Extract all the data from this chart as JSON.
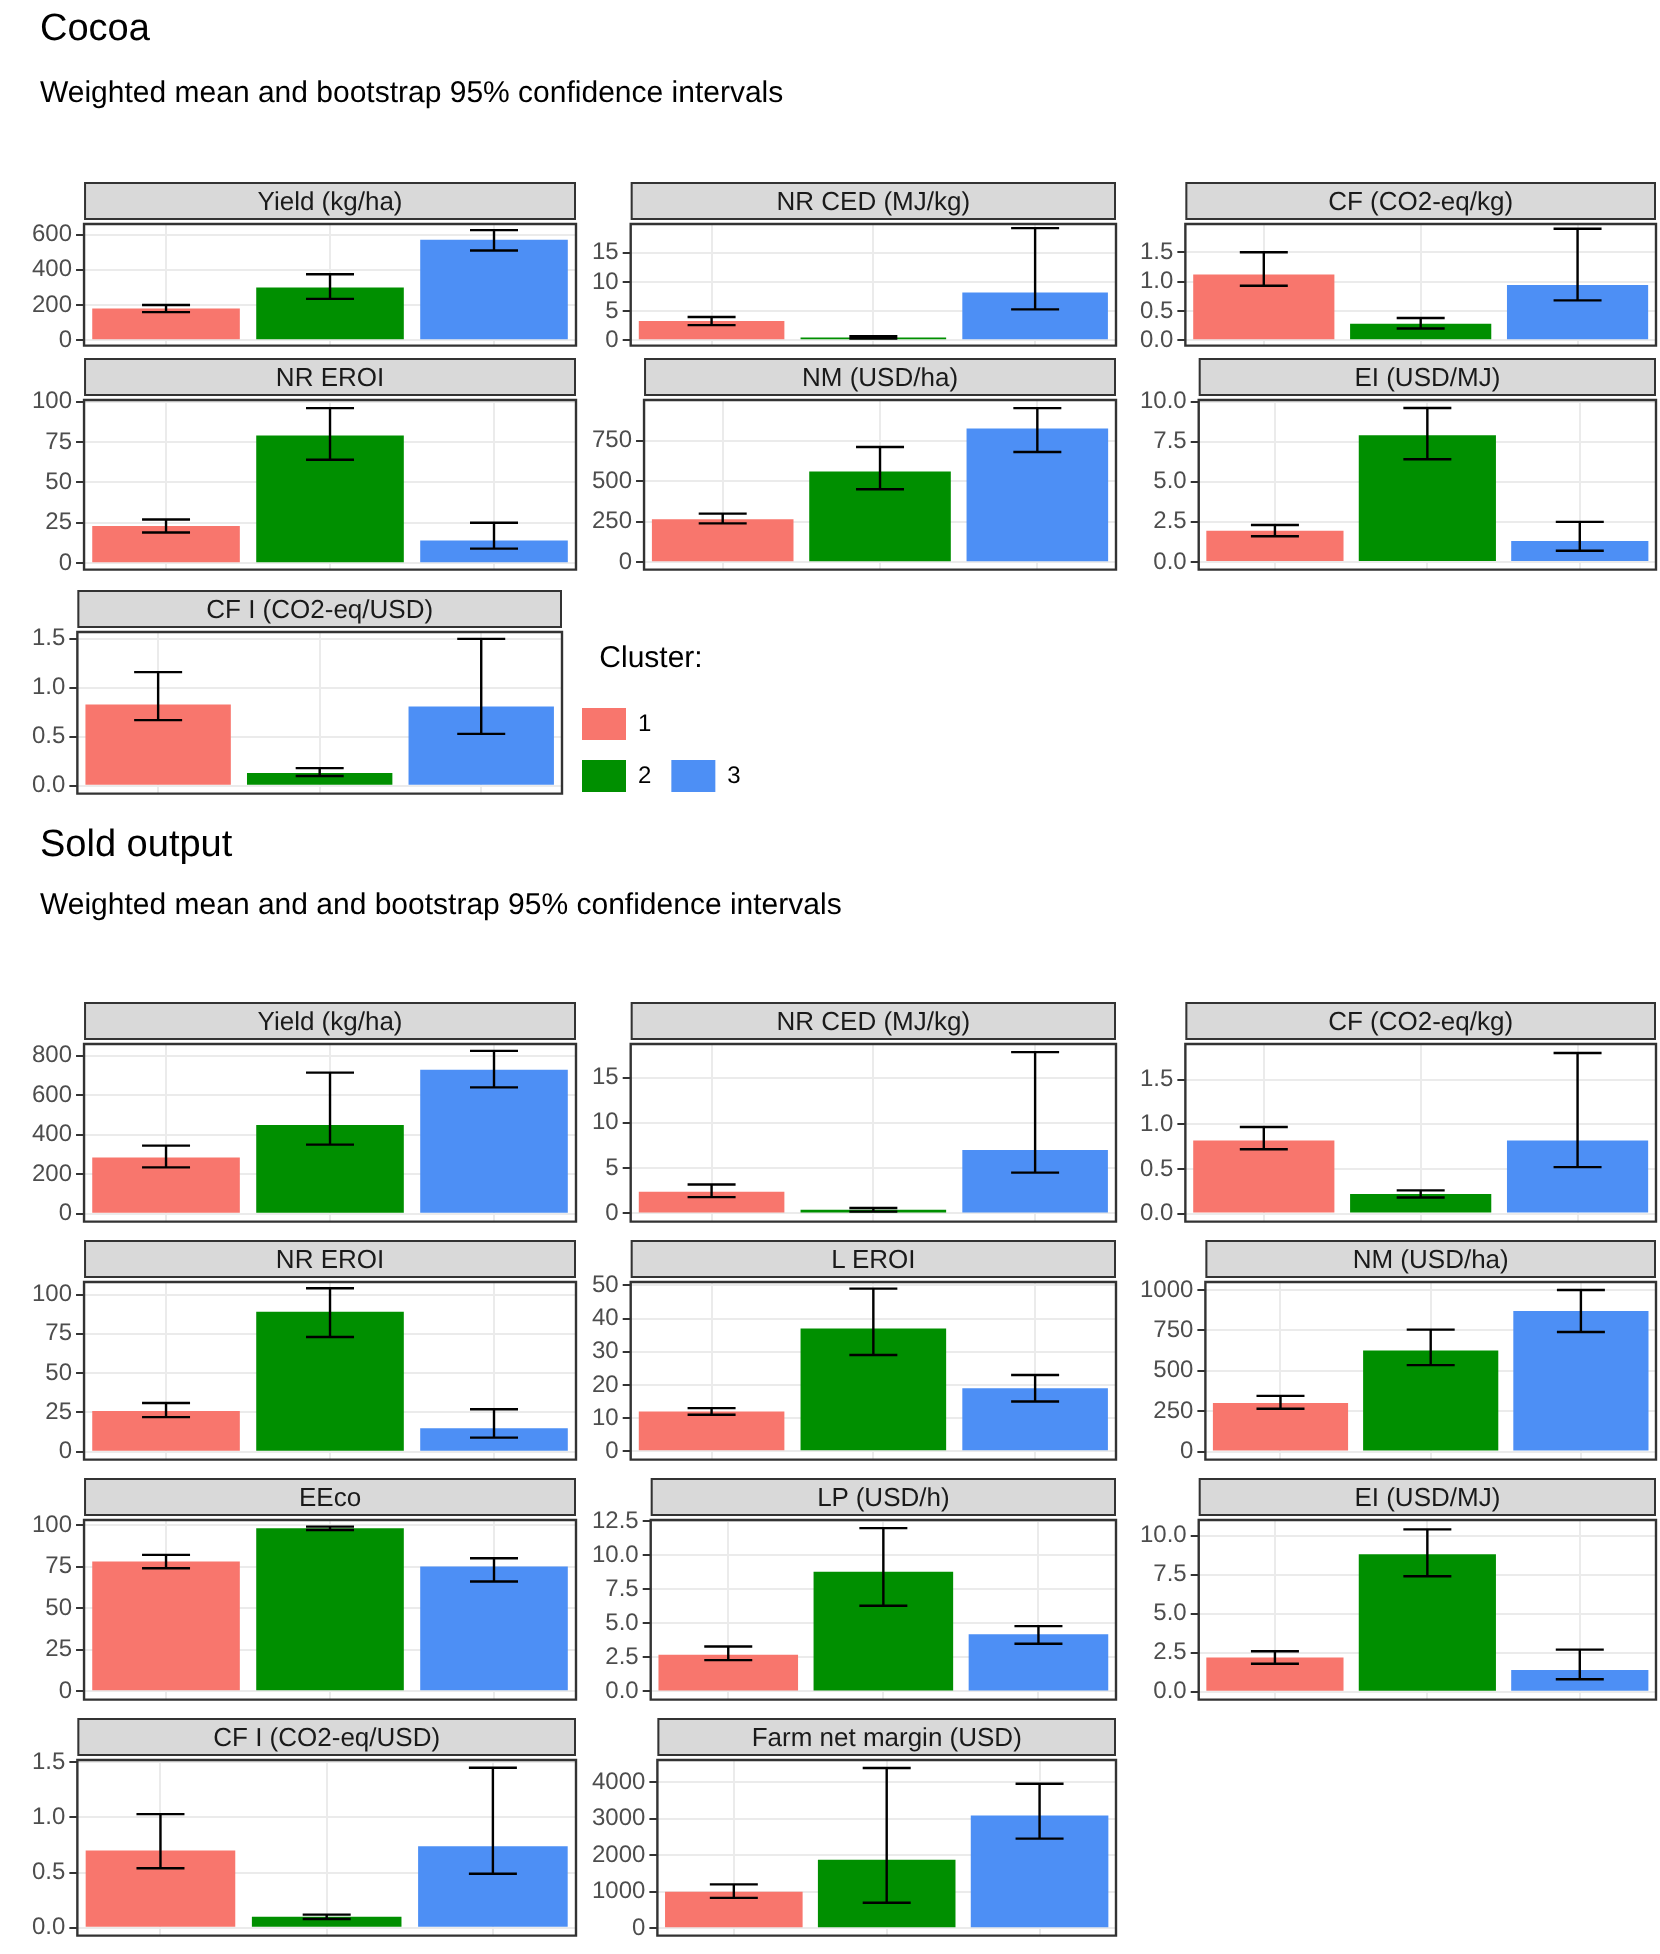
{
  "chart_data": [
    {
      "type": "bar",
      "title": "Yield (kg/ha)",
      "annotations": [
        "Cocoa",
        "Weighted mean and bootstrap 95% confidence intervals"
      ],
      "categories": [
        null,
        null,
        null
      ],
      "grid": true,
      "tick_labels": "y",
      "ylim": [
        -30,
        660
      ],
      "yticks": [
        0,
        200,
        400,
        600
      ],
      "series": [
        {
          "color": "#f8766d",
          "values": [
            180,
            null,
            null
          ],
          "errors": [
            [
              160,
              200
            ],
            null,
            null
          ]
        },
        {
          "color": "#008f00",
          "values": [
            null,
            300,
            null
          ],
          "errors": [
            null,
            [
              235,
              375
            ],
            null
          ]
        },
        {
          "color": "#4d8ff5",
          "values": [
            null,
            null,
            570
          ],
          "errors": [
            null,
            null,
            [
              510,
              625
            ]
          ]
        }
      ]
    },
    {
      "type": "bar",
      "title": "NR CED (MJ/kg)",
      "categories": [
        null,
        null,
        null
      ],
      "grid": true,
      "tick_labels": "y",
      "ylim": [
        -0.9,
        19.9
      ],
      "yticks": [
        0,
        5,
        10,
        15
      ],
      "series": [
        {
          "color": "#f8766d",
          "values": [
            3.3,
            null,
            null
          ],
          "errors": [
            [
              2.6,
              4.0
            ],
            null,
            null
          ]
        },
        {
          "color": "#008f00",
          "values": [
            null,
            0.5,
            null
          ],
          "errors": [
            null,
            [
              0.3,
              0.7
            ],
            null
          ]
        },
        {
          "color": "#4d8ff5",
          "values": [
            null,
            null,
            8.2
          ],
          "errors": [
            null,
            null,
            [
              5.3,
              19.2
            ]
          ]
        }
      ]
    },
    {
      "type": "bar",
      "title": "CF (CO2-eq/kg)",
      "categories": [
        null,
        null,
        null
      ],
      "grid": true,
      "tick_labels": "y",
      "ylim": [
        -0.09,
        1.98
      ],
      "yticks": [
        {
          "value": 0,
          "label": "0.0"
        },
        0.5,
        {
          "value": 1,
          "label": "1.0"
        },
        1.5
      ],
      "series": [
        {
          "color": "#f8766d",
          "values": [
            1.12,
            null,
            null
          ],
          "errors": [
            [
              0.93,
              1.5
            ],
            null,
            null
          ]
        },
        {
          "color": "#008f00",
          "values": [
            null,
            0.28,
            null
          ],
          "errors": [
            null,
            [
              0.2,
              0.38
            ],
            null
          ]
        },
        {
          "color": "#4d8ff5",
          "values": [
            null,
            null,
            0.94
          ],
          "errors": [
            null,
            null,
            [
              0.68,
              1.9
            ]
          ]
        }
      ]
    },
    {
      "type": "bar",
      "title": "NR EROI",
      "categories": [
        null,
        null,
        null
      ],
      "grid": true,
      "tick_labels": "y",
      "ylim": [
        -4,
        101
      ],
      "yticks": [
        0,
        25,
        50,
        75,
        100
      ],
      "series": [
        {
          "color": "#f8766d",
          "values": [
            23,
            null,
            null
          ],
          "errors": [
            [
              19,
              27
            ],
            null,
            null
          ]
        },
        {
          "color": "#008f00",
          "values": [
            null,
            79,
            null
          ],
          "errors": [
            null,
            [
              64,
              96
            ],
            null
          ]
        },
        {
          "color": "#4d8ff5",
          "values": [
            null,
            null,
            14
          ],
          "errors": [
            null,
            null,
            [
              9,
              25
            ]
          ]
        }
      ]
    },
    {
      "type": "bar",
      "title": "NM (USD/ha)",
      "categories": [
        null,
        null,
        null
      ],
      "grid": true,
      "tick_labels": "y",
      "ylim": [
        -45,
        1000
      ],
      "yticks": [
        0,
        250,
        500,
        750
      ],
      "series": [
        {
          "color": "#f8766d",
          "values": [
            265,
            null,
            null
          ],
          "errors": [
            [
              240,
              300
            ],
            null,
            null
          ]
        },
        {
          "color": "#008f00",
          "values": [
            null,
            560,
            null
          ],
          "errors": [
            null,
            [
              450,
              710
            ],
            null
          ]
        },
        {
          "color": "#4d8ff5",
          "values": [
            null,
            null,
            825
          ],
          "errors": [
            null,
            null,
            [
              680,
              950
            ]
          ]
        }
      ]
    },
    {
      "type": "bar",
      "title": "EI (USD/MJ)",
      "categories": [
        null,
        null,
        null
      ],
      "grid": true,
      "tick_labels": "y",
      "ylim": [
        -0.48,
        10.1
      ],
      "yticks": [
        {
          "value": 0,
          "label": "0.0"
        },
        2.5,
        {
          "value": 5,
          "label": "5.0"
        },
        7.5,
        {
          "value": 10,
          "label": "10.0"
        }
      ],
      "series": [
        {
          "color": "#f8766d",
          "values": [
            1.95,
            null,
            null
          ],
          "errors": [
            [
              1.6,
              2.3
            ],
            null,
            null
          ]
        },
        {
          "color": "#008f00",
          "values": [
            null,
            7.9,
            null
          ],
          "errors": [
            null,
            [
              6.4,
              9.6
            ],
            null
          ]
        },
        {
          "color": "#4d8ff5",
          "values": [
            null,
            null,
            1.3
          ],
          "errors": [
            null,
            null,
            [
              0.7,
              2.5
            ]
          ]
        }
      ]
    },
    {
      "type": "bar",
      "title": "CF I (CO2-eq/USD)",
      "legend_title": "Cluster:",
      "legend": "right",
      "categories": [
        null,
        null,
        null
      ],
      "grid": true,
      "tick_labels": "y",
      "ylim": [
        -0.08,
        1.57
      ],
      "yticks": [
        {
          "value": 0,
          "label": "0.0"
        },
        0.5,
        {
          "value": 1,
          "label": "1.0"
        },
        1.5
      ],
      "series": [
        {
          "name": "1",
          "color": "#f8766d",
          "values": [
            0.83,
            null,
            null
          ],
          "errors": [
            [
              0.67,
              1.16
            ],
            null,
            null
          ]
        },
        {
          "name": "2",
          "color": "#008f00",
          "values": [
            null,
            0.13,
            null
          ],
          "errors": [
            null,
            [
              0.1,
              0.18
            ],
            null
          ]
        },
        {
          "name": "3",
          "color": "#4d8ff5",
          "values": [
            null,
            null,
            0.81
          ],
          "errors": [
            null,
            null,
            [
              0.53,
              1.5
            ]
          ]
        }
      ]
    },
    {
      "type": "bar",
      "title": "Yield (kg/ha)",
      "annotations": [
        "Sold output",
        "Weighted mean and and bootstrap 95% confidence intervals"
      ],
      "categories": [
        null,
        null,
        null
      ],
      "grid": true,
      "tick_labels": "y",
      "ylim": [
        -40,
        860
      ],
      "yticks": [
        0,
        200,
        400,
        600,
        800
      ],
      "series": [
        {
          "color": "#f8766d",
          "values": [
            285,
            null,
            null
          ],
          "errors": [
            [
              235,
              345
            ],
            null,
            null
          ]
        },
        {
          "color": "#008f00",
          "values": [
            null,
            450,
            null
          ],
          "errors": [
            null,
            [
              350,
              715
            ],
            null
          ]
        },
        {
          "color": "#4d8ff5",
          "values": [
            null,
            null,
            730
          ],
          "errors": [
            null,
            null,
            [
              640,
              825
            ]
          ]
        }
      ]
    },
    {
      "type": "bar",
      "title": "NR CED (MJ/kg)",
      "categories": [
        null,
        null,
        null
      ],
      "grid": true,
      "tick_labels": "y",
      "ylim": [
        -0.9,
        18.7
      ],
      "yticks": [
        0,
        5,
        10,
        15
      ],
      "series": [
        {
          "color": "#f8766d",
          "values": [
            2.4,
            null,
            null
          ],
          "errors": [
            [
              1.8,
              3.2
            ],
            null,
            null
          ]
        },
        {
          "color": "#008f00",
          "values": [
            null,
            0.4,
            null
          ],
          "errors": [
            null,
            [
              0.2,
              0.6
            ],
            null
          ]
        },
        {
          "color": "#4d8ff5",
          "values": [
            null,
            null,
            7.0
          ],
          "errors": [
            null,
            null,
            [
              4.5,
              17.8
            ]
          ]
        }
      ]
    },
    {
      "type": "bar",
      "title": "CF (CO2-eq/kg)",
      "categories": [
        null,
        null,
        null
      ],
      "grid": true,
      "tick_labels": "y",
      "ylim": [
        -0.09,
        1.9
      ],
      "yticks": [
        {
          "value": 0,
          "label": "0.0"
        },
        0.5,
        {
          "value": 1,
          "label": "1.0"
        },
        1.5
      ],
      "series": [
        {
          "color": "#f8766d",
          "values": [
            0.82,
            null,
            null
          ],
          "errors": [
            [
              0.72,
              0.97
            ],
            null,
            null
          ]
        },
        {
          "color": "#008f00",
          "values": [
            null,
            0.22,
            null
          ],
          "errors": [
            null,
            [
              0.18,
              0.26
            ],
            null
          ]
        },
        {
          "color": "#4d8ff5",
          "values": [
            null,
            null,
            0.82
          ],
          "errors": [
            null,
            null,
            [
              0.52,
              1.8
            ]
          ]
        }
      ]
    },
    {
      "type": "bar",
      "title": "NR EROI",
      "categories": [
        null,
        null,
        null
      ],
      "grid": true,
      "tick_labels": "y",
      "ylim": [
        -5,
        108
      ],
      "yticks": [
        0,
        25,
        50,
        75,
        100
      ],
      "series": [
        {
          "color": "#f8766d",
          "values": [
            26,
            null,
            null
          ],
          "errors": [
            [
              22,
              31
            ],
            null,
            null
          ]
        },
        {
          "color": "#008f00",
          "values": [
            null,
            89,
            null
          ],
          "errors": [
            null,
            [
              73,
              104
            ],
            null
          ]
        },
        {
          "color": "#4d8ff5",
          "values": [
            null,
            null,
            15
          ],
          "errors": [
            null,
            null,
            [
              9,
              27
            ]
          ]
        }
      ]
    },
    {
      "type": "bar",
      "title": "L EROI",
      "categories": [
        null,
        null,
        null
      ],
      "grid": true,
      "tick_labels": "y",
      "ylim": [
        -2.5,
        51
      ],
      "yticks": [
        0,
        10,
        20,
        30,
        40,
        50
      ],
      "series": [
        {
          "color": "#f8766d",
          "values": [
            12,
            null,
            null
          ],
          "errors": [
            [
              11,
              13
            ],
            null,
            null
          ]
        },
        {
          "color": "#008f00",
          "values": [
            null,
            37,
            null
          ],
          "errors": [
            null,
            [
              29,
              49
            ],
            null
          ]
        },
        {
          "color": "#4d8ff5",
          "values": [
            null,
            null,
            19
          ],
          "errors": [
            null,
            null,
            [
              15,
              23
            ]
          ]
        }
      ]
    },
    {
      "type": "bar",
      "title": "NM (USD/ha)",
      "categories": [
        null,
        null,
        null
      ],
      "grid": true,
      "tick_labels": "y",
      "ylim": [
        -50,
        1050
      ],
      "yticks": [
        0,
        250,
        500,
        750,
        1000
      ],
      "series": [
        {
          "color": "#f8766d",
          "values": [
            300,
            null,
            null
          ],
          "errors": [
            [
              265,
              345
            ],
            null,
            null
          ]
        },
        {
          "color": "#008f00",
          "values": [
            null,
            625,
            null
          ],
          "errors": [
            null,
            [
              535,
              755
            ],
            null
          ]
        },
        {
          "color": "#4d8ff5",
          "values": [
            null,
            null,
            870
          ],
          "errors": [
            null,
            null,
            [
              740,
              1000
            ]
          ]
        }
      ]
    },
    {
      "type": "bar",
      "title": "EEco",
      "categories": [
        null,
        null,
        null
      ],
      "grid": true,
      "tick_labels": "y",
      "ylim": [
        -5,
        103
      ],
      "yticks": [
        0,
        25,
        50,
        75,
        100
      ],
      "series": [
        {
          "color": "#f8766d",
          "values": [
            78,
            null,
            null
          ],
          "errors": [
            [
              74,
              82
            ],
            null,
            null
          ]
        },
        {
          "color": "#008f00",
          "values": [
            null,
            98,
            null
          ],
          "errors": [
            null,
            [
              97,
              99
            ],
            null
          ]
        },
        {
          "color": "#4d8ff5",
          "values": [
            null,
            null,
            75
          ],
          "errors": [
            null,
            null,
            [
              66,
              80
            ]
          ]
        }
      ]
    },
    {
      "type": "bar",
      "title": "LP (USD/h)",
      "categories": [
        null,
        null,
        null
      ],
      "grid": true,
      "tick_labels": "y",
      "ylim": [
        -0.6,
        12.6
      ],
      "yticks": [
        {
          "value": 0,
          "label": "0.0"
        },
        2.5,
        {
          "value": 5,
          "label": "5.0"
        },
        7.5,
        {
          "value": 10,
          "label": "10.0"
        },
        12.5
      ],
      "series": [
        {
          "color": "#f8766d",
          "values": [
            2.7,
            null,
            null
          ],
          "errors": [
            [
              2.3,
              3.3
            ],
            null,
            null
          ]
        },
        {
          "color": "#008f00",
          "values": [
            null,
            8.8,
            null
          ],
          "errors": [
            null,
            [
              6.3,
              12
            ],
            null
          ]
        },
        {
          "color": "#4d8ff5",
          "values": [
            null,
            null,
            4.2
          ],
          "errors": [
            null,
            null,
            [
              3.5,
              4.8
            ]
          ]
        }
      ]
    },
    {
      "type": "bar",
      "title": "EI (USD/MJ)",
      "categories": [
        null,
        null,
        null
      ],
      "grid": true,
      "tick_labels": "y",
      "ylim": [
        -0.5,
        11
      ],
      "yticks": [
        {
          "value": 0,
          "label": "0.0"
        },
        2.5,
        {
          "value": 5,
          "label": "5.0"
        },
        7.5,
        {
          "value": 10,
          "label": "10.0"
        }
      ],
      "series": [
        {
          "color": "#f8766d",
          "values": [
            2.2,
            null,
            null
          ],
          "errors": [
            [
              1.8,
              2.6
            ],
            null,
            null
          ]
        },
        {
          "color": "#008f00",
          "values": [
            null,
            8.8,
            null
          ],
          "errors": [
            null,
            [
              7.4,
              10.4
            ],
            null
          ]
        },
        {
          "color": "#4d8ff5",
          "values": [
            null,
            null,
            1.4
          ],
          "errors": [
            null,
            null,
            [
              0.8,
              2.7
            ]
          ]
        }
      ]
    },
    {
      "type": "bar",
      "title": "CF I (CO2-eq/USD)",
      "categories": [
        null,
        null,
        null
      ],
      "grid": true,
      "tick_labels": "y",
      "ylim": [
        -0.07,
        1.52
      ],
      "yticks": [
        {
          "value": 0,
          "label": "0.0"
        },
        0.5,
        {
          "value": 1,
          "label": "1.0"
        },
        1.5
      ],
      "series": [
        {
          "color": "#f8766d",
          "values": [
            0.7,
            null,
            null
          ],
          "errors": [
            [
              0.54,
              1.03
            ],
            null,
            null
          ]
        },
        {
          "color": "#008f00",
          "values": [
            null,
            0.1,
            null
          ],
          "errors": [
            null,
            [
              0.08,
              0.12
            ],
            null
          ]
        },
        {
          "color": "#4d8ff5",
          "values": [
            null,
            null,
            0.74
          ],
          "errors": [
            null,
            null,
            [
              0.49,
              1.45
            ]
          ]
        }
      ]
    },
    {
      "type": "bar",
      "title": "Farm net margin (USD)",
      "categories": [
        null,
        null,
        null
      ],
      "grid": true,
      "tick_labels": "y",
      "ylim": [
        -200,
        4600
      ],
      "yticks": [
        0,
        1000,
        2000,
        3000,
        4000
      ],
      "series": [
        {
          "color": "#f8766d",
          "values": [
            1000,
            null,
            null
          ],
          "errors": [
            [
              830,
              1200
            ],
            null,
            null
          ]
        },
        {
          "color": "#008f00",
          "values": [
            null,
            1870,
            null
          ],
          "errors": [
            null,
            [
              700,
              4380
            ],
            null
          ]
        },
        {
          "color": "#4d8ff5",
          "values": [
            null,
            null,
            3080
          ],
          "errors": [
            null,
            null,
            [
              2450,
              3950
            ]
          ]
        }
      ]
    }
  ]
}
